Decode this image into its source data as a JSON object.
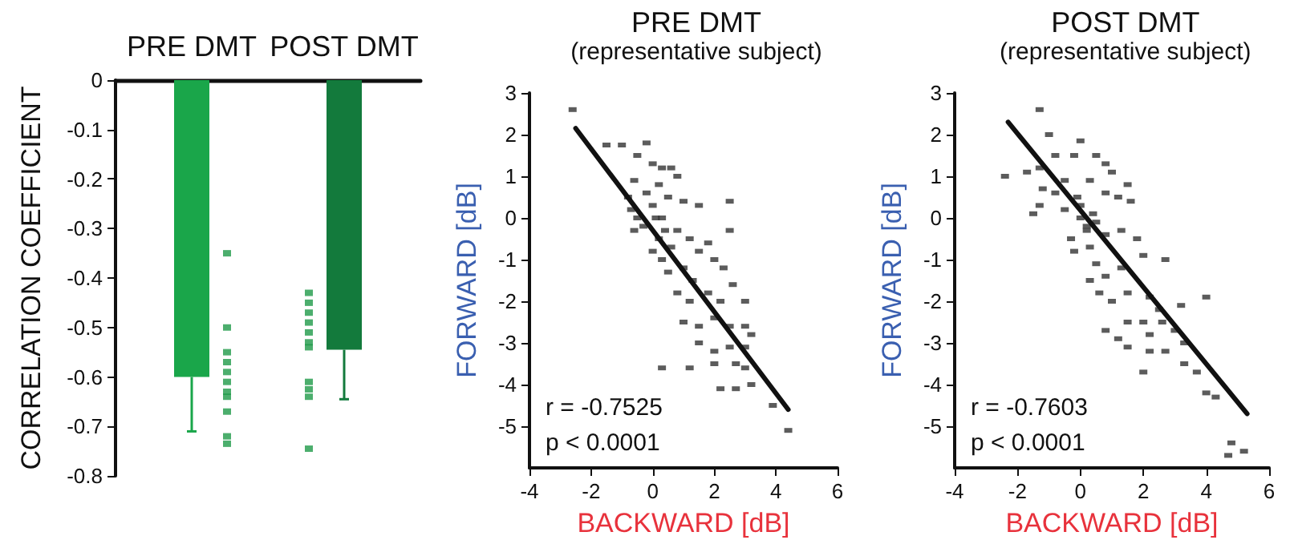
{
  "chart_data": [
    {
      "type": "bar",
      "ylabel": "CORRELATION COEFFICIENT",
      "categories": [
        "PRE DMT",
        "POST DMT"
      ],
      "ylim": [
        -0.8,
        0
      ],
      "yticks": [
        -0.8,
        -0.7,
        -0.6,
        -0.5,
        -0.4,
        -0.3,
        -0.2,
        -0.1,
        0
      ],
      "series": [
        {
          "type": "bar",
          "colors": [
            "#1aa64a",
            "#137a3c"
          ],
          "values": [
            -0.6,
            -0.545
          ],
          "errors": [
            [
              -0.71,
              -0.6
            ],
            [
              -0.645,
              -0.545
            ]
          ]
        },
        {
          "type": "scatter",
          "color": "#1f9a48",
          "marker": "square",
          "x": [
            "PRE DMT",
            "PRE DMT",
            "PRE DMT",
            "PRE DMT",
            "PRE DMT",
            "PRE DMT",
            "PRE DMT",
            "PRE DMT",
            "PRE DMT",
            "PRE DMT",
            "PRE DMT",
            "POST DMT",
            "POST DMT",
            "POST DMT",
            "POST DMT",
            "POST DMT",
            "POST DMT",
            "POST DMT",
            "POST DMT",
            "POST DMT",
            "POST DMT",
            "POST DMT"
          ],
          "values": [
            -0.35,
            -0.5,
            -0.55,
            -0.57,
            -0.59,
            -0.61,
            -0.63,
            -0.64,
            -0.67,
            -0.72,
            -0.735,
            -0.43,
            -0.45,
            -0.47,
            -0.49,
            -0.51,
            -0.53,
            -0.54,
            -0.61,
            -0.625,
            -0.64,
            -0.745
          ]
        }
      ]
    },
    {
      "type": "scatter",
      "title": "PRE DMT",
      "subtitle": "(representative subject)",
      "xlabel": "BACKWARD [dB]",
      "ylabel": "FORWARD [dB]",
      "annotations": [
        "r = -0.7525",
        "p < 0.0001"
      ],
      "xlim": [
        -4,
        6
      ],
      "xticks": [
        -4,
        -2,
        0,
        2,
        4,
        6
      ],
      "ylim": [
        -6,
        3
      ],
      "yticks": [
        -5,
        -4,
        -3,
        -2,
        -1,
        0,
        1,
        2,
        3
      ],
      "marker": "square",
      "series": [
        {
          "type": "scatter",
          "color": "#333333",
          "x": [
            -2.6,
            -1.5,
            -1,
            -0.2,
            -0.5,
            -0.6,
            -0.8,
            -0.7,
            -0.5,
            -0.3,
            -0.6,
            0,
            0.3,
            0.6,
            0.8,
            0.2,
            0.5,
            1,
            1.5,
            2.5,
            2.5,
            0,
            0.3,
            0.2,
            0.6,
            0,
            0.3,
            0.8,
            1.2,
            1.5,
            1.8,
            0.5,
            1,
            1.3,
            2,
            2.3,
            2.6,
            0.8,
            1.2,
            1.8,
            2.2,
            3,
            1,
            1.5,
            2,
            2.5,
            3,
            1.5,
            2,
            2.5,
            3,
            3.2,
            1.2,
            2,
            2.7,
            3,
            2.2,
            2.7,
            3.2,
            3.9,
            4.4,
            0.3,
            -0.2,
            0.1,
            0.4
          ],
          "values": [
            2.6,
            1.75,
            1.75,
            1.8,
            1.5,
            0.9,
            0.5,
            0.2,
            0,
            -0.2,
            -0.3,
            1.3,
            1.2,
            1.2,
            1,
            0.8,
            0.5,
            0.4,
            0.3,
            0.4,
            -0.3,
            0.3,
            0,
            -0.5,
            -0.7,
            -0.8,
            -1,
            -0.3,
            -0.5,
            -0.8,
            -0.6,
            -1.3,
            -1.2,
            -1.5,
            -1,
            -1.2,
            -1.6,
            -1.8,
            -2,
            -1.8,
            -2,
            -2,
            -2.5,
            -2.6,
            -2.4,
            -2.6,
            -2.6,
            -3,
            -3.2,
            -3.1,
            -3.1,
            -2.8,
            -3.6,
            -3.5,
            -3.5,
            -3.6,
            -4.1,
            -4.1,
            -4,
            -4.5,
            -5.1,
            -3.6,
            0.6,
            0,
            -0.3
          ]
        },
        {
          "type": "line",
          "color": "#111111",
          "marker": "none",
          "line_style": "solid",
          "x": [
            -2.5,
            4.4
          ],
          "values": [
            2.15,
            -4.6
          ]
        }
      ]
    },
    {
      "type": "scatter",
      "title": "POST DMT",
      "subtitle": "(representative subject)",
      "xlabel": "BACKWARD [dB]",
      "ylabel": "FORWARD [dB]",
      "annotations": [
        "r = -0.7603",
        "p < 0.0001"
      ],
      "xlim": [
        -4,
        6
      ],
      "xticks": [
        -4,
        -2,
        0,
        2,
        4,
        6
      ],
      "ylim": [
        -6,
        3
      ],
      "yticks": [
        -5,
        -4,
        -3,
        -2,
        -1,
        0,
        1,
        2,
        3
      ],
      "marker": "square",
      "series": [
        {
          "type": "scatter",
          "color": "#333333",
          "x": [
            -1.3,
            -2.4,
            -1.3,
            -1.7,
            -1,
            -0.8,
            0,
            -0.2,
            -1.2,
            -0.8,
            -0.5,
            -1.3,
            -1.5,
            -0.5,
            0,
            0.5,
            0.8,
            1,
            1.5,
            0.3,
            0.8,
            1.2,
            1.6,
            0,
            0.2,
            0.5,
            -0.3,
            -0.2,
            0.3,
            0.8,
            1.3,
            1.8,
            2,
            2.7,
            0.5,
            0.3,
            0.8,
            1.3,
            0.6,
            1,
            1.5,
            2.2,
            2.5,
            3.2,
            4,
            1.5,
            2,
            2.6,
            0.8,
            1.2,
            1.5,
            2.2,
            3,
            3.3,
            2.2,
            2.7,
            2,
            3.3,
            3.7,
            4,
            4.3,
            4.8,
            5.2,
            4.7,
            0.2,
            0.4,
            -0.1
          ],
          "values": [
            2.6,
            1,
            1.2,
            1.1,
            2,
            1.5,
            1.85,
            1.5,
            0.7,
            0.6,
            0.9,
            0.3,
            0.1,
            0.2,
            0.3,
            1.5,
            1.3,
            1.1,
            0.8,
            0.9,
            0.6,
            0.5,
            0.4,
            0,
            -0.3,
            -0.1,
            -0.5,
            -0.8,
            -0.7,
            -0.4,
            -0.3,
            -0.5,
            -0.9,
            -1,
            -1.1,
            -1.5,
            -1.4,
            -1.2,
            -1.8,
            -2,
            -1.8,
            -1.9,
            -2.2,
            -2.1,
            -1.9,
            -2.5,
            -2.5,
            -2.5,
            -2.7,
            -2.9,
            -3.1,
            -2.8,
            -2.7,
            -3,
            -3.2,
            -3.2,
            -3.7,
            -3.5,
            -3.7,
            -4.2,
            -4.3,
            -5.4,
            -5.6,
            -5.7,
            -0.2,
            0.1,
            0.5
          ]
        },
        {
          "type": "line",
          "color": "#111111",
          "marker": "none",
          "line_style": "solid",
          "x": [
            -2.3,
            5.3
          ],
          "values": [
            2.3,
            -4.7
          ]
        }
      ]
    }
  ]
}
